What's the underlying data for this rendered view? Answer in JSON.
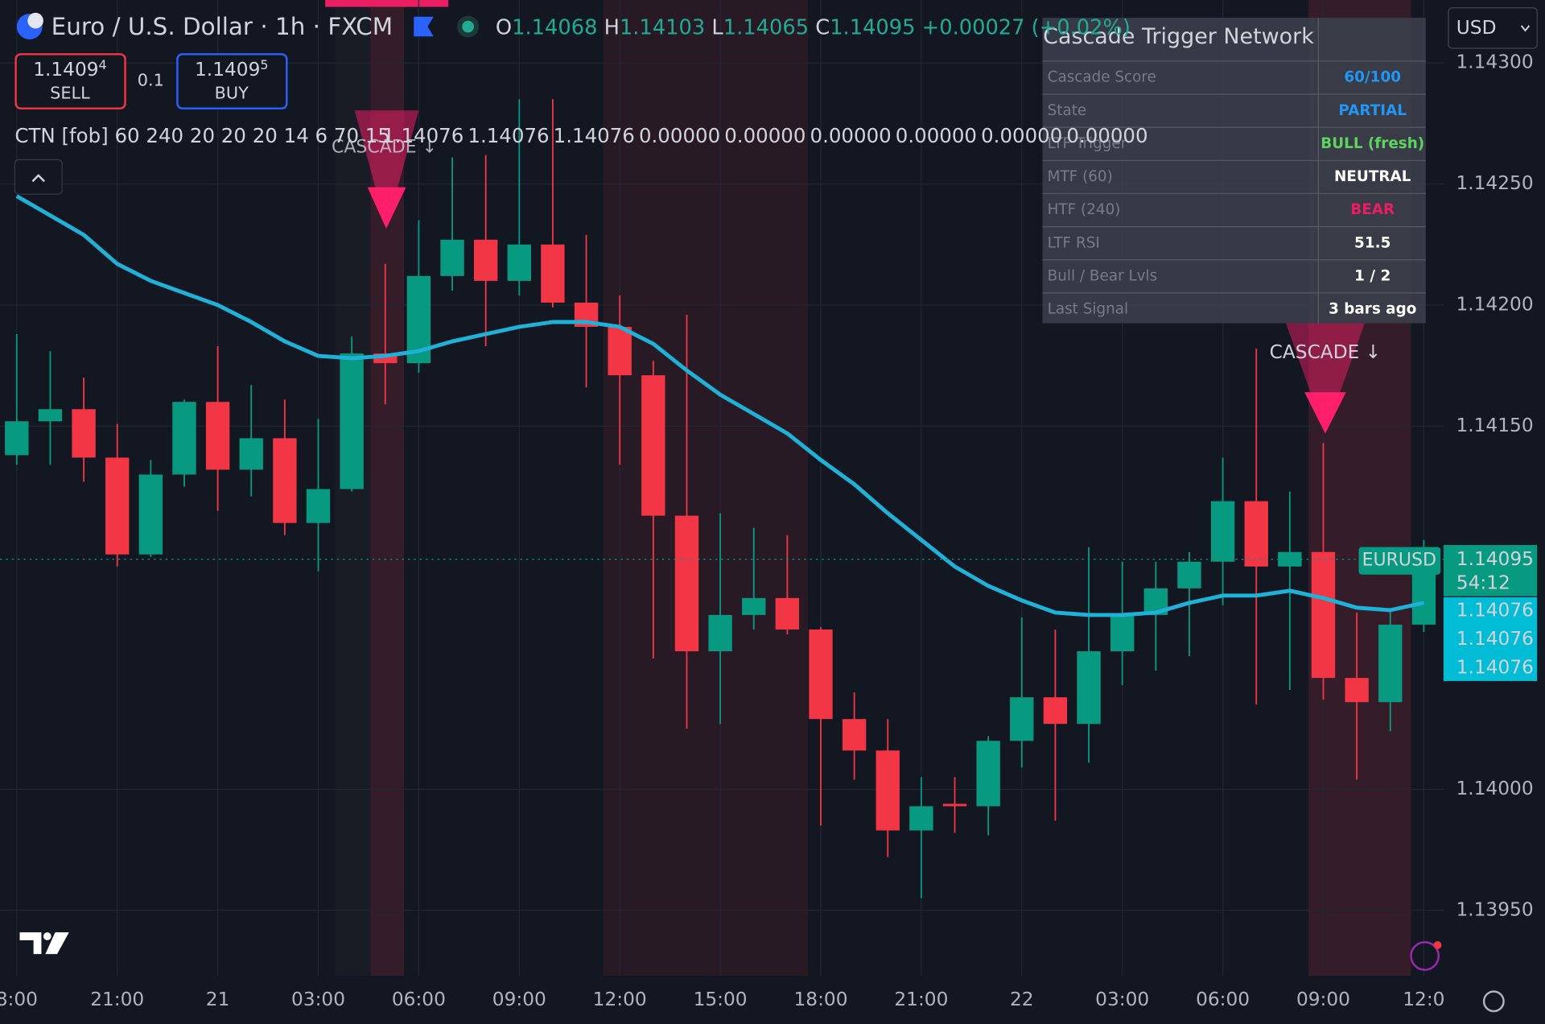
{
  "header": {
    "symbol": "Euro / U.S. Dollar · 1h · FXCM",
    "ohlc": [
      {
        "key": "O",
        "value": "1.14068"
      },
      {
        "key": "H",
        "value": "1.14103"
      },
      {
        "key": "L",
        "value": "1.14065"
      },
      {
        "key": "C",
        "value": "1.14095"
      }
    ],
    "change": "+0.00027 (+0.02%)",
    "currency": "USD"
  },
  "trade": {
    "sell_price": "1.1409",
    "sell_pip": "4",
    "sell": "SELL",
    "quantity": "0.1",
    "buy_price": "1.1409",
    "buy_pip": "5",
    "buy": "BUY"
  },
  "indicator": {
    "name": "CTN [fob] 60 240 20 20 20 14 6 70 15",
    "values": [
      "1.14076",
      "1.14076",
      "1.14076",
      "0.00000",
      "0.00000",
      "0.00000",
      "0.00000",
      "0.00000",
      "0.00000"
    ]
  },
  "table": {
    "title": "Cascade Trigger Network",
    "rows": [
      [
        "Cascade Score",
        "60/100"
      ],
      [
        "State",
        "PARTIAL"
      ],
      [
        "LTF Trigger",
        "BULL (fresh)"
      ],
      [
        "MTF (60)",
        "NEUTRAL"
      ],
      [
        "HTF (240)",
        "BEAR"
      ],
      [
        "LTF RSI",
        "51.5"
      ],
      [
        "Bull / Bear Lvls",
        "1 / 2"
      ],
      [
        "Last Signal",
        "3 bars ago"
      ]
    ]
  },
  "signals": [
    "CASCADE ↓",
    "CASCADE ↓"
  ],
  "price_scale": {
    "symbol": "EURUSD",
    "price": "1.14095",
    "countdown": "54:12",
    "indicator_values": [
      "1.14076",
      "1.14076",
      "1.14076"
    ]
  },
  "chart_data": {
    "type": "candlestick",
    "categories": [
      "8:00",
      null,
      null,
      "21:00",
      null,
      null,
      "21",
      null,
      null,
      "03:00",
      null,
      null,
      "06:00",
      null,
      null,
      "09:00",
      null,
      null,
      "12:00",
      null,
      null,
      "15:00",
      null,
      null,
      "18:00",
      null,
      null,
      "21:00",
      null,
      null,
      "22",
      null,
      null,
      "03:00",
      null,
      null,
      "06:00",
      null,
      null,
      "09:00",
      null,
      null,
      "12:0"
    ],
    "open": [
      1.14138,
      1.14152,
      1.14157,
      1.14137,
      1.14097,
      1.1413,
      1.1416,
      1.14132,
      1.14145,
      1.1411,
      1.14124,
      1.1418,
      1.14176,
      1.14212,
      1.14227,
      1.1421,
      1.14225,
      1.14201,
      1.14191,
      1.14171,
      1.14113,
      1.14057,
      1.14072,
      1.14079,
      1.14066,
      1.14029,
      1.14016,
      1.13983,
      1.13994,
      1.13993,
      1.1402,
      1.14038,
      1.14027,
      1.14057,
      1.14072,
      1.14083,
      1.14094,
      1.14119,
      1.14092,
      1.14098,
      1.14046,
      1.14036,
      1.14068
    ],
    "high": [
      1.14188,
      1.14181,
      1.1417,
      1.14151,
      1.14136,
      1.14161,
      1.14183,
      1.14167,
      1.14161,
      1.14153,
      1.14187,
      1.14217,
      1.14235,
      1.14261,
      1.14262,
      1.14285,
      1.14285,
      1.14229,
      1.14204,
      1.14177,
      1.14196,
      1.14114,
      1.14108,
      1.14105,
      1.14067,
      1.1404,
      1.14029,
      1.14005,
      1.14005,
      1.14022,
      1.14071,
      1.14066,
      1.141,
      1.14094,
      1.14094,
      1.14098,
      1.14137,
      1.14182,
      1.14123,
      1.14143,
      1.14073,
      1.14074,
      1.14103
    ],
    "low": [
      1.14134,
      1.14134,
      1.14127,
      1.14092,
      1.14096,
      1.14125,
      1.14115,
      1.14121,
      1.14105,
      1.1409,
      1.14123,
      1.14159,
      1.14172,
      1.14206,
      1.14183,
      1.14204,
      1.14199,
      1.14166,
      1.14134,
      1.14054,
      1.14025,
      1.14027,
      1.14066,
      1.14064,
      1.13985,
      1.14004,
      1.13972,
      1.13955,
      1.13982,
      1.13981,
      1.14009,
      1.13987,
      1.14011,
      1.14043,
      1.14049,
      1.14055,
      1.14076,
      1.14035,
      1.14041,
      1.14037,
      1.14004,
      1.14024,
      1.14065
    ],
    "close": [
      1.14152,
      1.14157,
      1.14137,
      1.14097,
      1.1413,
      1.1416,
      1.14132,
      1.14145,
      1.1411,
      1.14124,
      1.1418,
      1.14176,
      1.14212,
      1.14227,
      1.1421,
      1.14225,
      1.14201,
      1.14191,
      1.14171,
      1.14113,
      1.14057,
      1.14072,
      1.14079,
      1.14066,
      1.14029,
      1.14016,
      1.13983,
      1.13993,
      1.13993,
      1.1402,
      1.14038,
      1.14027,
      1.14057,
      1.14072,
      1.14083,
      1.14094,
      1.14119,
      1.14092,
      1.14098,
      1.14046,
      1.14036,
      1.14068,
      1.14095
    ],
    "up_color": "#089981",
    "down_color": "#f23645",
    "line": {
      "color": "#1fb2d8",
      "values": [
        1.14245,
        1.14237,
        1.14229,
        1.14217,
        1.1421,
        1.14205,
        1.142,
        1.14193,
        1.14185,
        1.14179,
        1.14178,
        1.14179,
        1.14181,
        1.14185,
        1.14188,
        1.14191,
        1.14193,
        1.14193,
        1.14191,
        1.14184,
        1.14173,
        1.14163,
        1.14155,
        1.14147,
        1.14136,
        1.14126,
        1.14114,
        1.14103,
        1.14092,
        1.14084,
        1.14078,
        1.14073,
        1.14072,
        1.14072,
        1.14073,
        1.14077,
        1.1408,
        1.1408,
        1.14082,
        1.14079,
        1.14075,
        1.14074,
        1.14077
      ]
    },
    "ylim": [
      1.13923,
      1.14326
    ],
    "yticks": [
      {
        "value": 1.143,
        "label": "1.14300"
      },
      {
        "value": 1.1425,
        "label": "1.14250"
      },
      {
        "value": 1.142,
        "label": "1.14200"
      },
      {
        "value": 1.1415,
        "label": "1.14150"
      },
      {
        "value": 1.14,
        "label": "1.14000"
      },
      {
        "value": 1.1395,
        "label": "1.13950"
      }
    ],
    "grid": true
  }
}
